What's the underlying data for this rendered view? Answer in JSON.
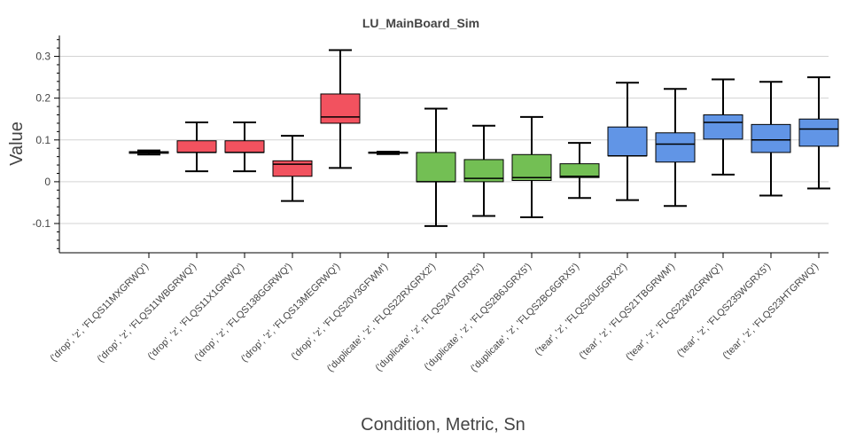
{
  "chart_data": {
    "type": "box",
    "title": "LU_MainBoard_Sim",
    "xlabel": "Condition, Metric, Sn",
    "ylabel": "Value",
    "ylim": [
      -0.17,
      0.35
    ],
    "yticks": [
      -0.1,
      0,
      0.1,
      0.2,
      0.3
    ],
    "ytick_labels": [
      "-0.1",
      "0",
      "0.1",
      "0.2",
      "0.3"
    ],
    "grid": true,
    "colors": {
      "drop": "#f2525f",
      "duplicate": "#73bf54",
      "tear": "#6195e6"
    },
    "categories": [
      "('drop', 'z', 'FLQS11MXGRWQ')",
      "('drop', 'z', 'FLQS11WBGRWQ')",
      "('drop', 'z', 'FLQS11X1GRWQ')",
      "('drop', 'z', 'FLQS138GGRWQ')",
      "('drop', 'z', 'FLQS13MEGRWQ')",
      "('drop', 'z', 'FLQS20V3GFWM')",
      "('duplicate', 'z', 'FLQS22RXGRX2')",
      "('duplicate', 'z', 'FLQS2AVTGRX5')",
      "('duplicate', 'z', 'FLQS2B6JGRX5')",
      "('duplicate', 'z', 'FLQS2BC6GRX5')",
      "('tear', 'z', 'FLQS20U5GRX2')",
      "('tear', 'z', 'FLQS21TBGRWM')",
      "('tear', 'z', 'FLQS22W2GRWQ')",
      "('tear', 'z', 'FLQS235WGRX5')",
      "('tear', 'z', 'FLQS23HTGRWQ')"
    ],
    "boxes": [
      {
        "group": "drop",
        "min": 0.065,
        "q1": 0.068,
        "median": 0.07,
        "q3": 0.072,
        "max": 0.075
      },
      {
        "group": "drop",
        "min": 0.025,
        "q1": 0.07,
        "median": 0.07,
        "q3": 0.098,
        "max": 0.142
      },
      {
        "group": "drop",
        "min": 0.025,
        "q1": 0.07,
        "median": 0.07,
        "q3": 0.098,
        "max": 0.142
      },
      {
        "group": "drop",
        "min": -0.046,
        "q1": 0.013,
        "median": 0.042,
        "q3": 0.05,
        "max": 0.11
      },
      {
        "group": "drop",
        "min": 0.033,
        "q1": 0.14,
        "median": 0.155,
        "q3": 0.21,
        "max": 0.315
      },
      {
        "group": "drop",
        "min": 0.066,
        "q1": 0.068,
        "median": 0.07,
        "q3": 0.071,
        "max": 0.072
      },
      {
        "group": "duplicate",
        "min": -0.106,
        "q1": 0.0,
        "median": 0.0,
        "q3": 0.07,
        "max": 0.175
      },
      {
        "group": "duplicate",
        "min": -0.082,
        "q1": 0.0,
        "median": 0.008,
        "q3": 0.053,
        "max": 0.134
      },
      {
        "group": "duplicate",
        "min": -0.085,
        "q1": 0.003,
        "median": 0.01,
        "q3": 0.065,
        "max": 0.155
      },
      {
        "group": "duplicate",
        "min": -0.039,
        "q1": 0.01,
        "median": 0.013,
        "q3": 0.043,
        "max": 0.093
      },
      {
        "group": "tear",
        "min": -0.044,
        "q1": 0.062,
        "median": 0.062,
        "q3": 0.131,
        "max": 0.237
      },
      {
        "group": "tear",
        "min": -0.058,
        "q1": 0.047,
        "median": 0.09,
        "q3": 0.117,
        "max": 0.222
      },
      {
        "group": "tear",
        "min": 0.017,
        "q1": 0.102,
        "median": 0.142,
        "q3": 0.16,
        "max": 0.245
      },
      {
        "group": "tear",
        "min": -0.033,
        "q1": 0.07,
        "median": 0.1,
        "q3": 0.137,
        "max": 0.239
      },
      {
        "group": "tear",
        "min": -0.016,
        "q1": 0.085,
        "median": 0.126,
        "q3": 0.15,
        "max": 0.25
      }
    ]
  }
}
